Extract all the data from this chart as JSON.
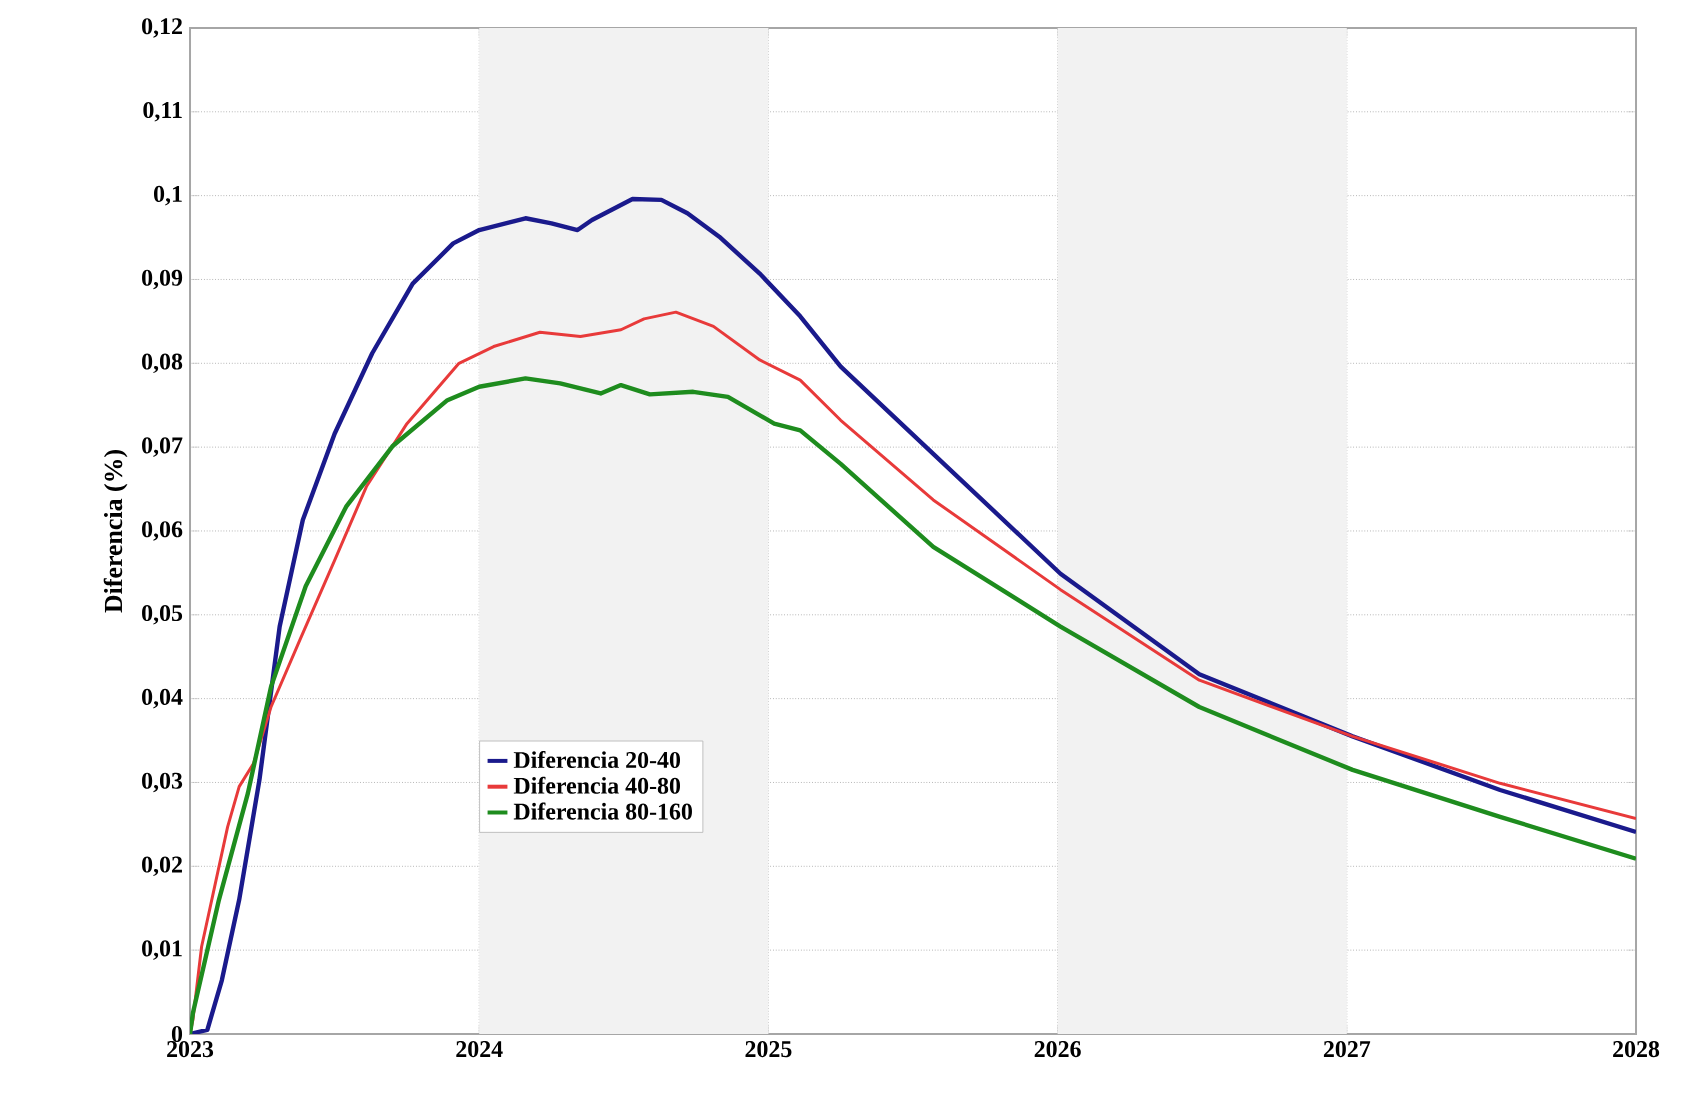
{
  "chart_data": {
    "type": "line",
    "ylabel": "Diferencia (%)",
    "xlim": [
      2023,
      2028
    ],
    "xticks": [
      2023,
      2024,
      2025,
      2026,
      2027,
      2028
    ],
    "ylim": [
      0,
      0.12
    ],
    "yticks": [
      0,
      {
        "value": 0.01,
        "label": "0,01"
      },
      {
        "value": 0.02,
        "label": "0,02"
      },
      {
        "value": 0.03,
        "label": "0,03"
      },
      {
        "value": 0.04,
        "label": "0,04"
      },
      {
        "value": 0.05,
        "label": "0,05"
      },
      {
        "value": 0.06,
        "label": "0,06"
      },
      {
        "value": 0.07,
        "label": "0,07"
      },
      {
        "value": 0.08,
        "label": "0,08"
      },
      {
        "value": 0.09,
        "label": "0,09"
      },
      {
        "value": 0.1,
        "label": "0,1"
      },
      {
        "value": 0.11,
        "label": "0,11"
      },
      {
        "value": 0.12,
        "label": "0,12"
      }
    ],
    "grid": true,
    "legend": "center left",
    "marker": "none",
    "line_style": "solid",
    "bands": [
      {
        "axis": "x",
        "from": 2024,
        "to": 2025,
        "color": "#f2f2f2"
      },
      {
        "axis": "x",
        "from": 2026,
        "to": 2027,
        "color": "#f2f2f2"
      }
    ],
    "series": [
      {
        "name": "Diferencia 20-40",
        "color": "#1a1a8c",
        "x": [
          2023.0,
          2023.06,
          2023.11,
          2023.17,
          2023.24,
          2023.31,
          2023.39,
          2023.5,
          2023.63,
          2023.77,
          2023.91,
          2024.0,
          2024.16,
          2024.25,
          2024.34,
          2024.39,
          2024.53,
          2024.63,
          2024.72,
          2024.83,
          2024.97,
          2025.11,
          2025.25,
          2025.57,
          2026.01,
          2026.49,
          2027.02,
          2027.53,
          2028.0
        ],
        "values": [
          0,
          0.0005,
          0.0064,
          0.016,
          0.0303,
          0.0486,
          0.0613,
          0.0716,
          0.0812,
          0.0895,
          0.0943,
          0.0959,
          0.0973,
          0.0967,
          0.0959,
          0.0971,
          0.0996,
          0.0995,
          0.0979,
          0.0951,
          0.0907,
          0.0856,
          0.0796,
          0.0692,
          0.0549,
          0.0429,
          0.0355,
          0.0291,
          0.0241
        ]
      },
      {
        "name": "Diferencia 40-80",
        "color": "#e83a3a",
        "x": [
          2023.0,
          2023.01,
          2023.04,
          2023.13,
          2023.17,
          2023.22,
          2023.28,
          2023.38,
          2023.5,
          2023.61,
          2023.75,
          2023.93,
          2024.05,
          2024.21,
          2024.35,
          2024.49,
          2024.57,
          2024.68,
          2024.81,
          2024.97,
          2025.11,
          2025.25,
          2025.57,
          2026.01,
          2026.49,
          2027.02,
          2027.53,
          2028.0
        ],
        "values": [
          0,
          0.0017,
          0.0104,
          0.0247,
          0.0295,
          0.0323,
          0.039,
          0.047,
          0.0565,
          0.0653,
          0.0728,
          0.08,
          0.082,
          0.0837,
          0.0832,
          0.084,
          0.0853,
          0.0861,
          0.0844,
          0.0804,
          0.078,
          0.0732,
          0.0637,
          0.053,
          0.0422,
          0.0355,
          0.0299,
          0.0257
        ]
      },
      {
        "name": "Diferencia 80-160",
        "color": "#1e8c1e",
        "x": [
          2023.0,
          2023.01,
          2023.1,
          2023.2,
          2023.28,
          2023.4,
          2023.54,
          2023.7,
          2023.89,
          2024.0,
          2024.16,
          2024.28,
          2024.42,
          2024.49,
          2024.59,
          2024.74,
          2024.86,
          2025.02,
          2025.11,
          2025.25,
          2025.57,
          2026.01,
          2026.49,
          2027.02,
          2027.53,
          2028.0
        ],
        "values": [
          0,
          0.0025,
          0.016,
          0.0287,
          0.0414,
          0.0534,
          0.0629,
          0.0701,
          0.0756,
          0.0772,
          0.0782,
          0.0776,
          0.0764,
          0.0774,
          0.0763,
          0.0766,
          0.076,
          0.0728,
          0.072,
          0.068,
          0.0581,
          0.0486,
          0.039,
          0.0315,
          0.0259,
          0.0209
        ]
      }
    ]
  }
}
